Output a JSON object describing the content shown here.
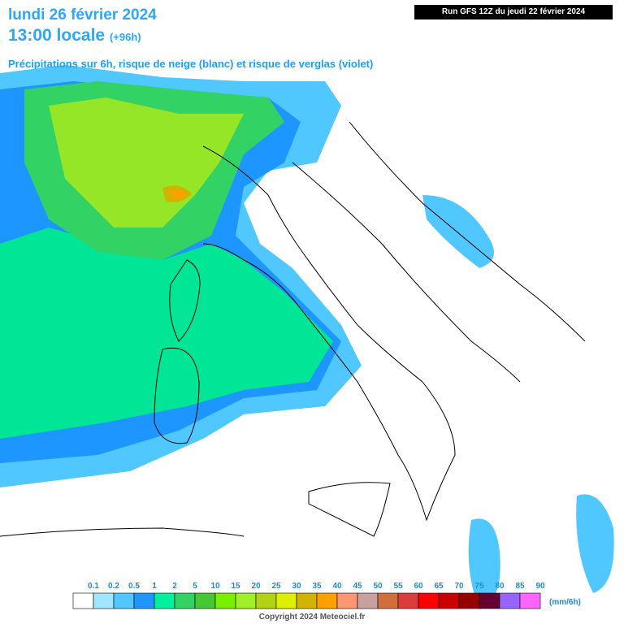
{
  "header": {
    "date": "lundi 26 février 2024",
    "time": "13:00 locale",
    "lead": "(+96h)",
    "subtitle": "Précipitations sur 6h, risque de neige (blanc) et risque de verglas (violet)",
    "run": "Run GFS 12Z du jeudi 22 février 2024"
  },
  "legend": {
    "unit": "(mm/6h)",
    "labels": [
      "0.1",
      "0.2",
      "0.5",
      "1",
      "2",
      "5",
      "10",
      "15",
      "20",
      "25",
      "30",
      "35",
      "40",
      "45",
      "50",
      "55",
      "60",
      "65",
      "70",
      "75",
      "80",
      "85",
      "90"
    ],
    "colors": [
      "#ffffff",
      "#a0e6ff",
      "#50c8ff",
      "#1e96ff",
      "#00f0a0",
      "#32d264",
      "#46c832",
      "#78f000",
      "#a0f028",
      "#b4d214",
      "#dcf000",
      "#d2b400",
      "#ffa000",
      "#ff9673",
      "#c8a0a0",
      "#d26e3c",
      "#dc3c3c",
      "#ff0000",
      "#c80000",
      "#960000",
      "#640032",
      "#9664ff",
      "#ff64ff"
    ]
  },
  "footer": {
    "copyright": "Copyright 2024 Meteociel.fr"
  }
}
